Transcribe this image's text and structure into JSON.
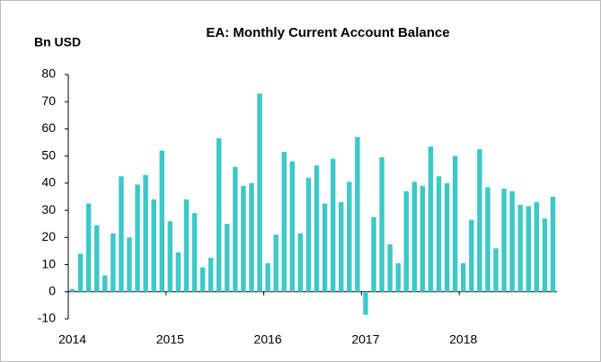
{
  "chart_data": {
    "type": "bar",
    "title": "EA: Monthly Current Account Balance",
    "y_label": "Bn USD",
    "color": "#3ec8c8",
    "categories": [
      "2014",
      null,
      null,
      null,
      null,
      null,
      null,
      null,
      null,
      null,
      null,
      null,
      "2015",
      null,
      null,
      null,
      null,
      null,
      null,
      null,
      null,
      null,
      null,
      null,
      "2016",
      null,
      null,
      null,
      null,
      null,
      null,
      null,
      null,
      null,
      null,
      null,
      "2017",
      null,
      null,
      null,
      null,
      null,
      null,
      null,
      null,
      null,
      null,
      null,
      "2018",
      null,
      null,
      null,
      null,
      null,
      null,
      null,
      null,
      null,
      null,
      null
    ],
    "values": [
      1,
      14,
      32.5,
      24.5,
      6,
      21.5,
      42.5,
      20,
      39.5,
      43,
      34,
      52,
      26,
      14.5,
      34,
      29,
      9,
      12.5,
      56.5,
      25,
      46,
      39,
      40,
      73,
      10.5,
      21,
      51.5,
      48,
      21.5,
      42,
      46.5,
      32.5,
      49,
      33,
      40.5,
      57,
      -8.5,
      27.5,
      49.5,
      17.5,
      10.5,
      37,
      40.5,
      39,
      53.5,
      42.5,
      40,
      50,
      10.5,
      26.5,
      52.5,
      38.5,
      16,
      38,
      37,
      32,
      31.5,
      33,
      27,
      35
    ],
    "ylim": [
      -10,
      80
    ],
    "yticks": [
      -10,
      0,
      10,
      20,
      30,
      40,
      50,
      60,
      70,
      80
    ],
    "grid": false
  }
}
